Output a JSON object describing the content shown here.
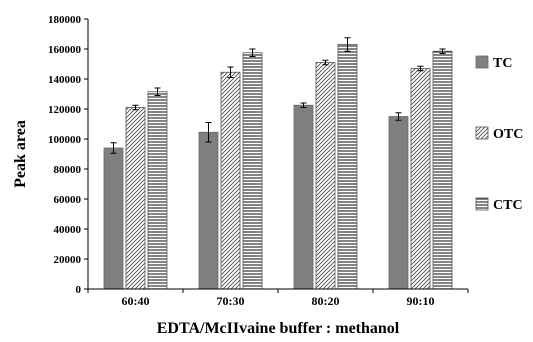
{
  "chart_data": {
    "type": "bar",
    "title": "",
    "xlabel": "EDTA/McIIvaine buffer : methanol",
    "ylabel": "Peak  area",
    "categories": [
      "60:40",
      "70:30",
      "80:20",
      "90:10"
    ],
    "ylim": [
      0,
      180000
    ],
    "yticks": [
      "0",
      "20000",
      "40000",
      "60000",
      "80000",
      "100000",
      "120000",
      "140000",
      "160000",
      "180000"
    ],
    "grid": false,
    "legend_position": "right",
    "series": [
      {
        "name": "TC",
        "pattern": "solid",
        "color": "#7f7f7f",
        "values": [
          94000,
          104500,
          122500,
          115000
        ],
        "errors": [
          3500,
          6500,
          1500,
          2500
        ]
      },
      {
        "name": "OTC",
        "pattern": "diagonal",
        "color": "#ffffff",
        "values": [
          121000,
          144500,
          151000,
          147000
        ],
        "errors": [
          1500,
          3500,
          1500,
          1500
        ]
      },
      {
        "name": "CTC",
        "pattern": "horizontal",
        "color": "#ffffff",
        "values": [
          131500,
          157500,
          163000,
          158500
        ],
        "errors": [
          2500,
          2500,
          4500,
          1500
        ]
      }
    ]
  }
}
